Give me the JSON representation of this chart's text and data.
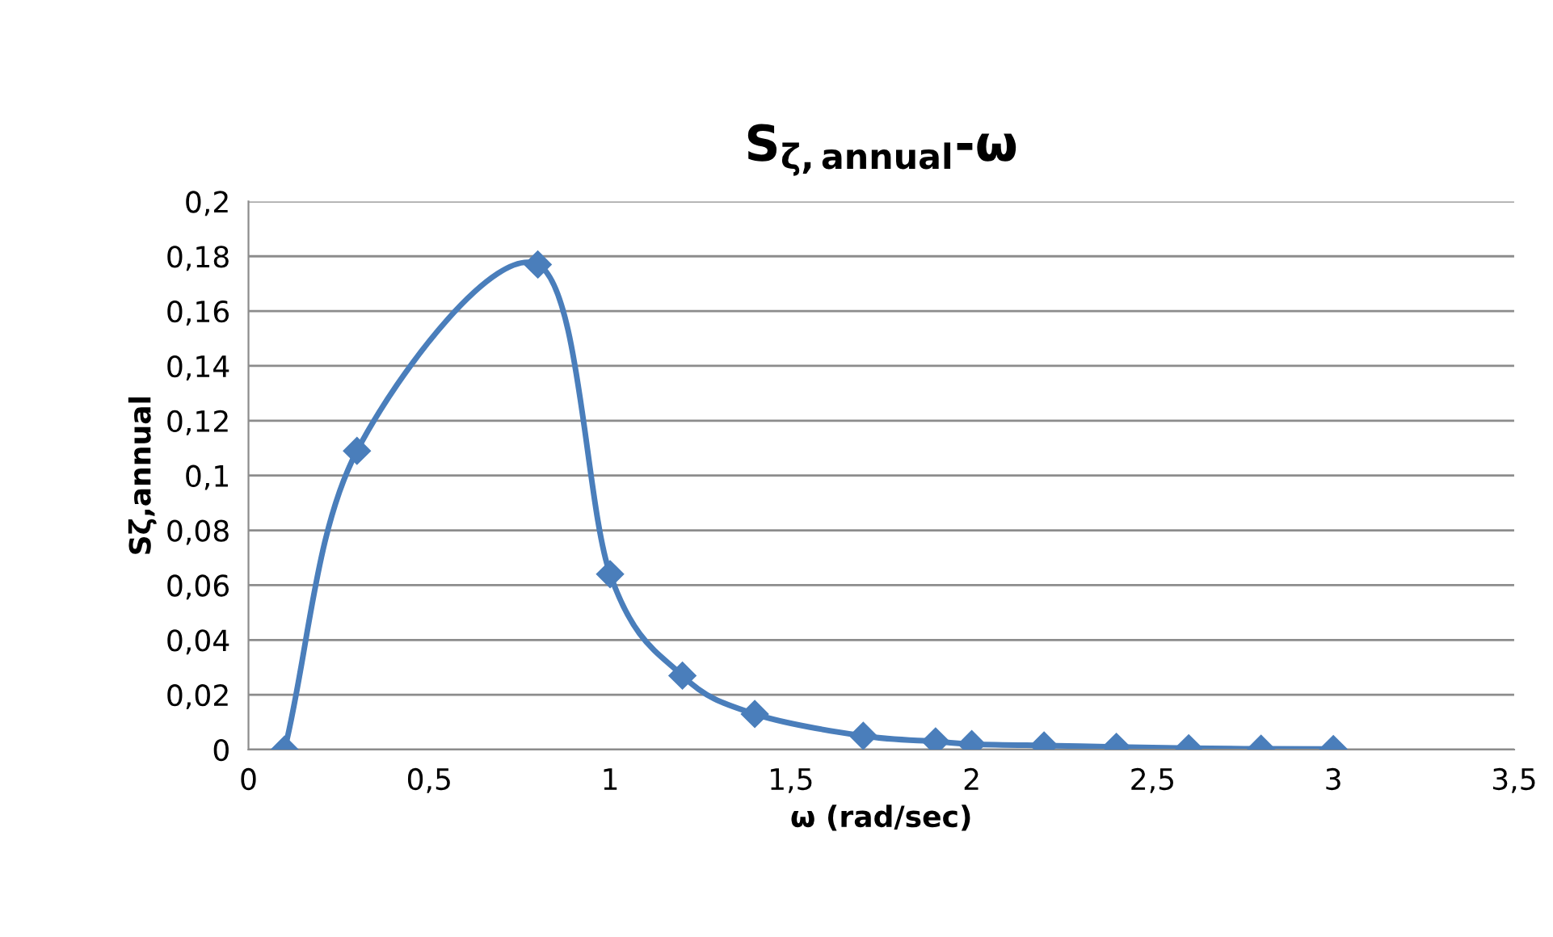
{
  "chart_data": {
    "type": "line",
    "title": "S$_{ζ,annual}$-ω",
    "xlabel": "ω (rad/sec)",
    "ylabel": "Sζ,annual",
    "series": [
      {
        "color": "#4a7ebb",
        "x": [
          0.1,
          0.3,
          0.8,
          1.0,
          1.2,
          1.4,
          1.7,
          1.9,
          2.0,
          2.2,
          2.4,
          2.6,
          2.8,
          3.0
        ],
        "values": [
          0,
          0.109,
          0.177,
          0.064,
          0.027,
          0.013,
          0.005,
          0.003,
          0.002,
          0.0015,
          0.001,
          0.0005,
          0.0003,
          0.0002
        ]
      }
    ],
    "xlim": [
      0,
      3.5
    ],
    "xticks": [
      0,
      {
        "value": 0.5,
        "label": "0,5"
      },
      1,
      {
        "value": 1.5,
        "label": "1,5"
      },
      2,
      {
        "value": 2.5,
        "label": "2,5"
      },
      3,
      {
        "value": 3.5,
        "label": "3,5"
      }
    ],
    "ylim": [
      0,
      0.2
    ],
    "yticks": [
      0,
      {
        "value": 0.02,
        "label": "0,02"
      },
      {
        "value": 0.04,
        "label": "0,04"
      },
      {
        "value": 0.06,
        "label": "0,06"
      },
      {
        "value": 0.08,
        "label": "0,08"
      },
      {
        "value": 0.1,
        "label": "0,1"
      },
      {
        "value": 0.12,
        "label": "0,12"
      },
      {
        "value": 0.14,
        "label": "0,14"
      },
      {
        "value": 0.16,
        "label": "0,16"
      },
      {
        "value": 0.18,
        "label": "0,18"
      },
      {
        "value": 0.2,
        "label": "0,2"
      }
    ],
    "grid": "y",
    "marker": "diamond",
    "line_style": "solid"
  }
}
